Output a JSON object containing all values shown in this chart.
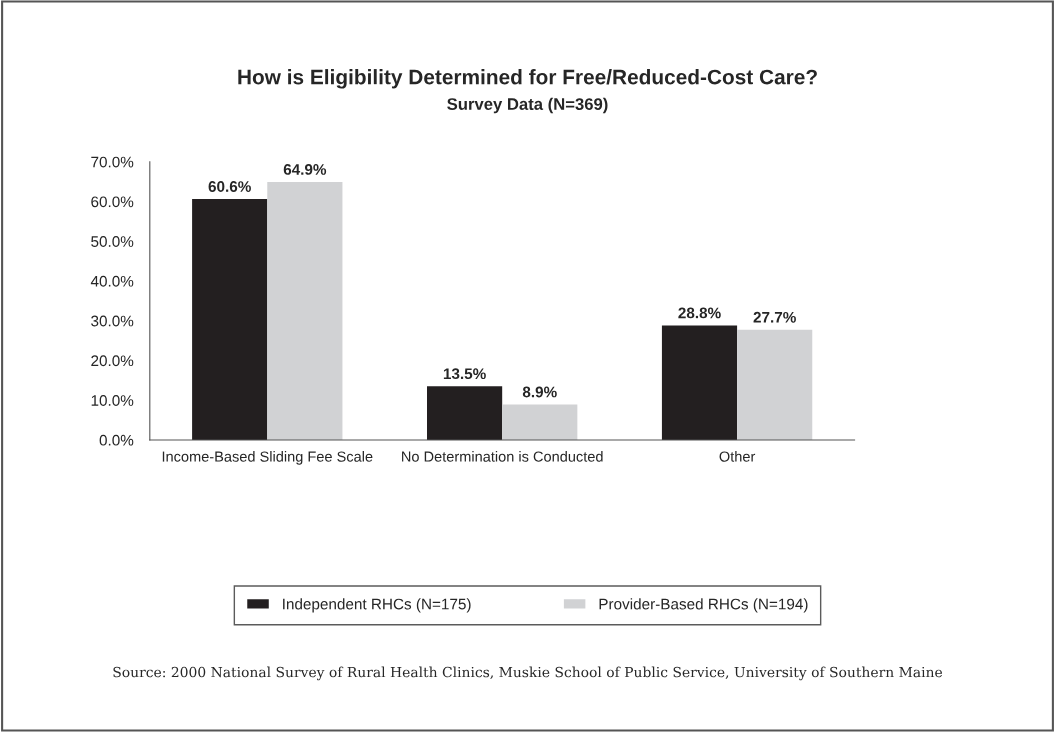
{
  "chart_data": {
    "type": "bar",
    "title": "How is Eligibility Determined for Free/Reduced-Cost Care?",
    "subtitle": "Survey Data (N=369)",
    "categories": [
      "Income-Based Sliding Fee Scale",
      "No Determination is Conducted",
      "Other"
    ],
    "series": [
      {
        "name": "Independent RHCs (N=175)",
        "color": "#231f20",
        "values": [
          60.6,
          13.5,
          28.8
        ]
      },
      {
        "name": "Provider-Based RHCs (N=194)",
        "color": "#d1d2d4",
        "values": [
          64.9,
          8.9,
          27.7
        ]
      }
    ],
    "ylim": [
      0,
      70
    ],
    "yticks": [
      {
        "value": 0,
        "label": "0.0%"
      },
      {
        "value": 10,
        "label": "10.0%"
      },
      {
        "value": 20,
        "label": "20.0%"
      },
      {
        "value": 30,
        "label": "30.0%"
      },
      {
        "value": 40,
        "label": "40.0%"
      },
      {
        "value": 50,
        "label": "50.0%"
      },
      {
        "value": 60,
        "label": "60.0%"
      },
      {
        "value": 70,
        "label": "70.0%"
      }
    ],
    "value_labels": [
      [
        "60.6%",
        "13.5%",
        "28.8%"
      ],
      [
        "64.9%",
        "8.9%",
        "27.7%"
      ]
    ],
    "legend": "bottom",
    "grid": false,
    "annotations": [
      "Source: 2000 National Survey of Rural Health Clinics, Muskie School of Public Service, University of Southern Maine"
    ]
  }
}
